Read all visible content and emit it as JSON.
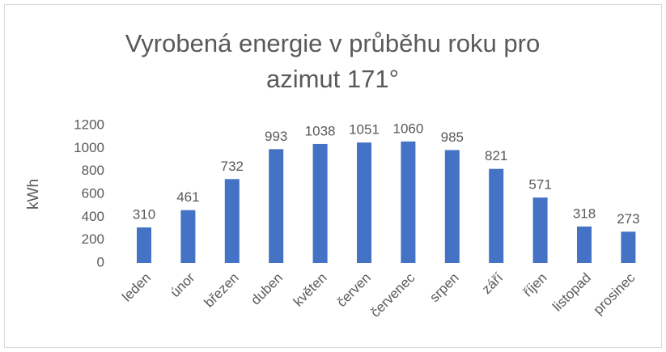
{
  "chart_data": {
    "type": "bar",
    "title": "Vyrobená energie v průběhu roku pro azimut 171°",
    "y_label": "kWh",
    "categories": [
      "leden",
      "únor",
      "březen",
      "duben",
      "květen",
      "červen",
      "červenec",
      "srpen",
      "září",
      "říjen",
      "listopad",
      "prosinec"
    ],
    "values": [
      310,
      461,
      732,
      993,
      1038,
      1051,
      1060,
      985,
      821,
      571,
      318,
      273
    ],
    "color": "#4472c4",
    "ylim": [
      0,
      1200
    ],
    "yticks": [
      0,
      200,
      400,
      600,
      800,
      1000,
      1200
    ],
    "grid": false
  }
}
